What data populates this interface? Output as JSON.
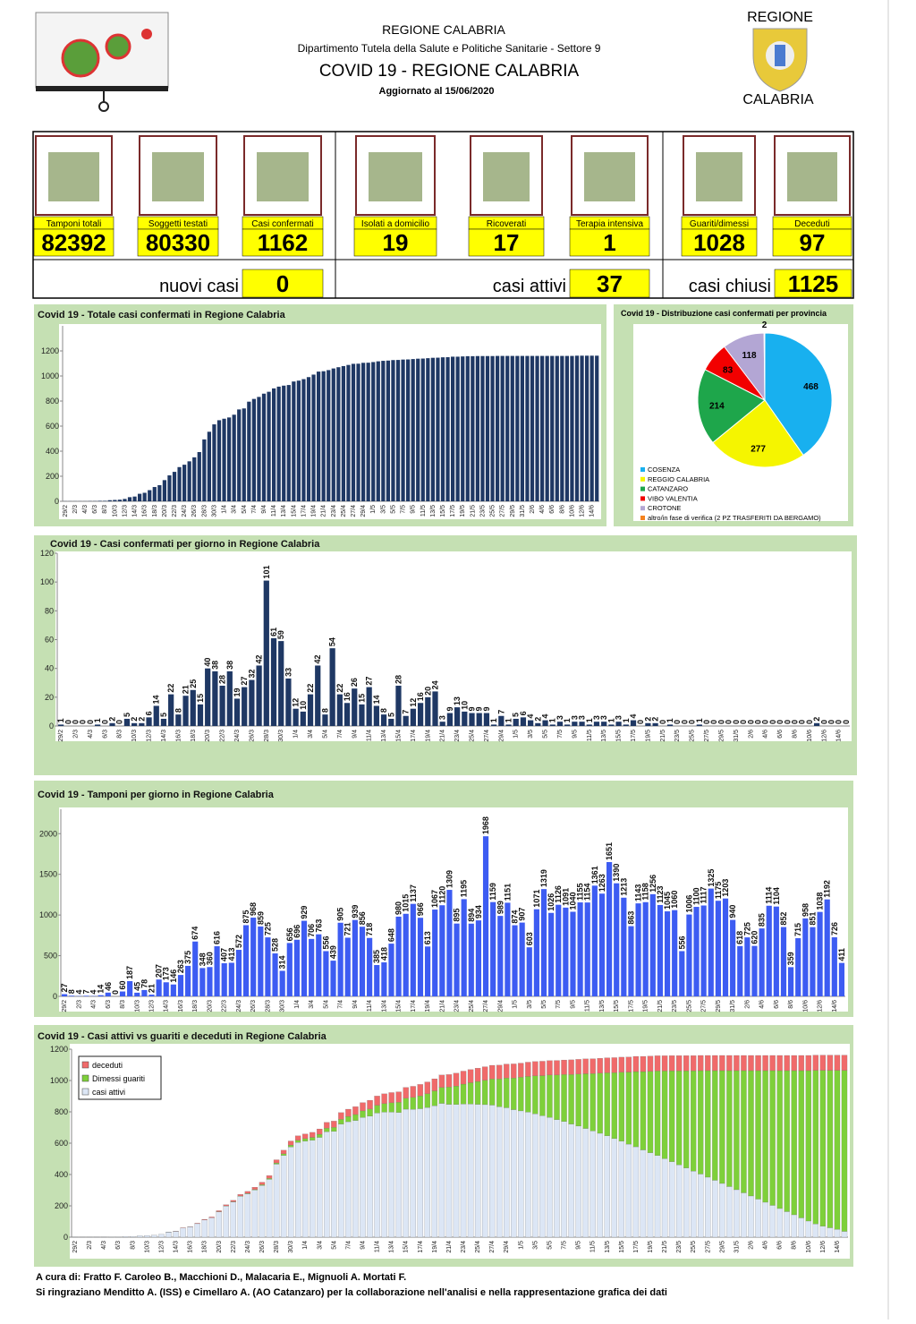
{
  "header": {
    "region": "REGIONE CALABRIA",
    "department": "Dipartimento Tutela della Salute e Politiche Sanitarie - Settore 9",
    "title": "COVID 19 - REGIONE CALABRIA",
    "updated": "Aggiornato al  15/06/2020"
  },
  "logo": {
    "top": "REGIONE",
    "bottom": "CALABRIA"
  },
  "cards": [
    {
      "label": "Tamponi totali",
      "value": 82392
    },
    {
      "label": "Soggetti testati",
      "value": 80330
    },
    {
      "label": "Casi confermati",
      "value": 1162
    },
    {
      "label": "Isolati a domicilio",
      "value": 19
    },
    {
      "label": "Ricoverati",
      "value": 17
    },
    {
      "label": "Terapia intensiva",
      "value": 1
    },
    {
      "label": "Guariti/dimessi",
      "value": 1028
    },
    {
      "label": "Deceduti",
      "value": 97
    }
  ],
  "summary": [
    {
      "label": "nuovi casi",
      "value": 0
    },
    {
      "label": "casi attivi",
      "value": 37
    },
    {
      "label": "casi chiusi",
      "value": 1125
    }
  ],
  "chart_data": [
    {
      "type": "bar",
      "title": "Covid 19 - Totale casi confermati in Regione Calabria",
      "color": "#1f3864",
      "ylim": [
        0,
        1400
      ],
      "yticks": [
        0,
        200,
        400,
        600,
        800,
        1000,
        1200
      ],
      "grid": false,
      "categories": [
        "29/2",
        null,
        "2/3",
        null,
        "4/3",
        null,
        "6/3",
        null,
        "8/3",
        null,
        "10/3",
        null,
        "12/3",
        null,
        "14/3",
        null,
        "16/3",
        null,
        "18/3",
        null,
        "20/3",
        null,
        "22/3",
        null,
        "24/3",
        null,
        "26/3",
        null,
        "28/3",
        null,
        "30/3",
        null,
        "1/4",
        null,
        "3/4",
        null,
        "5/4",
        null,
        "7/4",
        null,
        "9/4",
        null,
        "11/4",
        null,
        "13/4",
        null,
        "15/4",
        null,
        "17/4",
        null,
        "19/4",
        null,
        "21/4",
        null,
        "23/4",
        null,
        "25/4",
        null,
        "27/4",
        null,
        "29/4",
        null,
        "1/5",
        null,
        "3/5",
        null,
        "5/5",
        null,
        "7/5",
        null,
        "9/5",
        null,
        "11/5",
        null,
        "13/5",
        null,
        "15/5",
        null,
        "17/5",
        null,
        "19/5",
        null,
        "21/5",
        null,
        "23/5",
        null,
        "25/5",
        null,
        "27/5",
        null,
        "29/5",
        null,
        "31/5",
        null,
        "2/6",
        null,
        "4/6",
        null,
        "6/6",
        null,
        "8/6",
        null,
        "10/6",
        null,
        "12/6",
        null,
        "14/6",
        null
      ],
      "values": [
        1,
        1,
        1,
        1,
        1,
        2,
        2,
        4,
        4,
        9,
        11,
        13,
        19,
        33,
        38,
        60,
        68,
        89,
        114,
        129,
        169,
        207,
        235,
        273,
        292,
        319,
        351,
        393,
        494,
        555,
        614,
        647,
        659,
        669,
        691,
        733,
        741,
        795,
        817,
        833,
        859,
        874,
        901,
        915,
        923,
        928,
        956,
        963,
        975,
        991,
        1011,
        1035,
        1038,
        1047,
        1060,
        1070,
        1079,
        1088,
        1097,
        1098,
        1105,
        1106,
        1111,
        1117,
        1121,
        1123,
        1127,
        1128,
        1131,
        1132,
        1135,
        1138,
        1139,
        1142,
        1145,
        1146,
        1149,
        1150,
        1154,
        1154,
        1156,
        1158,
        1158,
        1159,
        1159,
        1159,
        1159,
        1160,
        1160,
        1160,
        1160,
        1160,
        1160,
        1160,
        1160,
        1160,
        1160,
        1160,
        1160,
        1160,
        1160,
        1160,
        1160,
        1162,
        1162,
        1162,
        1162,
        1162
      ]
    },
    {
      "type": "bar",
      "title": "Covid 19 - Casi confermati per giorno in Regione Calabria",
      "color": "#1f3864",
      "ylim": [
        0,
        120
      ],
      "yticks": [
        0,
        20,
        40,
        60,
        80,
        100,
        120
      ],
      "grid": false,
      "data_labels": true,
      "categories": [
        "29/2",
        null,
        "2/3",
        null,
        "4/3",
        null,
        "6/3",
        null,
        "8/3",
        null,
        "10/3",
        null,
        "12/3",
        null,
        "14/3",
        null,
        "16/3",
        null,
        "18/3",
        null,
        "20/3",
        null,
        "22/3",
        null,
        "24/3",
        null,
        "26/3",
        null,
        "28/3",
        null,
        "30/3",
        null,
        "1/4",
        null,
        "3/4",
        null,
        "5/4",
        null,
        "7/4",
        null,
        "9/4",
        null,
        "11/4",
        null,
        "13/4",
        null,
        "15/4",
        null,
        "17/4",
        null,
        "19/4",
        null,
        "21/4",
        null,
        "23/4",
        null,
        "25/4",
        null,
        "27/4",
        null,
        "29/4",
        null,
        "1/5",
        null,
        "3/5",
        null,
        "5/5",
        null,
        "7/5",
        null,
        "9/5",
        null,
        "11/5",
        null,
        "13/5",
        null,
        "15/5",
        null,
        "17/5",
        null,
        "19/5",
        null,
        "21/5",
        null,
        "23/5",
        null,
        "25/5",
        null,
        "27/5",
        null,
        "29/5",
        null,
        "31/5",
        null,
        "2/6",
        null,
        "4/6",
        null,
        "6/6",
        null,
        "8/6",
        null,
        "10/6",
        null,
        "12/6",
        null,
        "14/6",
        null
      ],
      "values": [
        1,
        0,
        0,
        0,
        0,
        1,
        0,
        2,
        0,
        5,
        2,
        2,
        6,
        14,
        5,
        22,
        8,
        21,
        25,
        15,
        40,
        38,
        28,
        38,
        19,
        27,
        32,
        42,
        101,
        61,
        59,
        33,
        12,
        10,
        22,
        42,
        8,
        54,
        22,
        16,
        26,
        15,
        27,
        14,
        8,
        5,
        28,
        7,
        12,
        16,
        20,
        24,
        3,
        9,
        13,
        10,
        9,
        9,
        9,
        1,
        7,
        1,
        5,
        6,
        4,
        2,
        4,
        1,
        3,
        1,
        3,
        3,
        1,
        3,
        3,
        1,
        3,
        1,
        4,
        0,
        2,
        2,
        0,
        1,
        0,
        0,
        0,
        1,
        0,
        0,
        0,
        0,
        0,
        0,
        0,
        0,
        0,
        0,
        0,
        0,
        0,
        0,
        0,
        2,
        0,
        0,
        0,
        0
      ]
    },
    {
      "type": "bar",
      "title": "Covid 19 - Tamponi per giorno in Regione Calabria",
      "color": "#3d5cf2",
      "ylim": [
        0,
        2300
      ],
      "yticks": [
        0,
        500,
        1000,
        1500,
        2000
      ],
      "grid": false,
      "data_labels": true,
      "categories": [
        "29/2",
        null,
        "2/3",
        null,
        "4/3",
        null,
        "6/3",
        null,
        "8/3",
        null,
        "10/3",
        null,
        "12/3",
        null,
        "14/3",
        null,
        "16/3",
        null,
        "18/3",
        null,
        "20/3",
        null,
        "22/3",
        null,
        "24/3",
        null,
        "26/3",
        null,
        "28/3",
        null,
        "30/3",
        null,
        "1/4",
        null,
        "3/4",
        null,
        "5/4",
        null,
        "7/4",
        null,
        "9/4",
        null,
        "11/4",
        null,
        "13/4",
        null,
        "15/4",
        null,
        "17/4",
        null,
        "19/4",
        null,
        "21/4",
        null,
        "23/4",
        null,
        "25/4",
        null,
        "27/4",
        null,
        "29/4",
        null,
        "1/5",
        null,
        "3/5",
        null,
        "5/5",
        null,
        "7/5",
        null,
        "9/5",
        null,
        "11/5",
        null,
        "13/5",
        null,
        "15/5",
        null,
        "17/5",
        null,
        "19/5",
        null,
        "21/5",
        null,
        "23/5",
        null,
        "25/5",
        null,
        "27/5",
        null,
        "29/5",
        null,
        "31/5",
        null,
        "2/6",
        null,
        "4/6",
        null,
        "6/6",
        null,
        "8/6",
        null,
        "10/6",
        null,
        "12/6",
        null,
        "14/6",
        null
      ],
      "values": [
        27,
        8,
        4,
        7,
        4,
        14,
        46,
        0,
        60,
        187,
        45,
        78,
        21,
        207,
        173,
        146,
        263,
        375,
        674,
        348,
        360,
        616,
        407,
        413,
        572,
        875,
        968,
        859,
        725,
        528,
        314,
        656,
        696,
        929,
        706,
        763,
        556,
        439,
        905,
        721,
        939,
        856,
        718,
        385,
        418,
        648,
        980,
        1015,
        1137,
        966,
        613,
        1067,
        1120,
        1309,
        895,
        1195,
        894,
        934,
        1968,
        1159,
        989,
        1151,
        874,
        907,
        603,
        1071,
        1319,
        1026,
        1126,
        1091,
        1040,
        1155,
        1154,
        1361,
        1263,
        1651,
        1390,
        1213,
        863,
        1143,
        1158,
        1256,
        1123,
        1045,
        1060,
        556,
        1006,
        1100,
        1117,
        1325,
        1175,
        1203,
        940,
        618,
        725,
        620,
        835,
        1114,
        1104,
        852,
        359,
        715,
        958,
        851,
        1038,
        1192,
        726,
        411
      ]
    },
    {
      "type": "stacked-bar",
      "title": "Covid 19 - Casi attivi vs guariti e deceduti in Regione Calabria",
      "ylim": [
        0,
        1200
      ],
      "yticks": [
        0,
        200,
        400,
        600,
        800,
        1000,
        1200
      ],
      "grid": false,
      "categories": [
        "29/2",
        null,
        "2/3",
        null,
        "4/3",
        null,
        "6/3",
        null,
        "8/3",
        null,
        "10/3",
        null,
        "12/3",
        null,
        "14/3",
        null,
        "16/3",
        null,
        "18/3",
        null,
        "20/3",
        null,
        "22/3",
        null,
        "24/3",
        null,
        "26/3",
        null,
        "28/3",
        null,
        "30/3",
        null,
        "1/4",
        null,
        "3/4",
        null,
        "5/4",
        null,
        "7/4",
        null,
        "9/4",
        null,
        "11/4",
        null,
        "13/4",
        null,
        "15/4",
        null,
        "17/4",
        null,
        "19/4",
        null,
        "21/4",
        null,
        "23/4",
        null,
        "25/4",
        null,
        "27/4",
        null,
        "29/4",
        null,
        "1/5",
        null,
        "3/5",
        null,
        "5/5",
        null,
        "7/5",
        null,
        "9/5",
        null,
        "11/5",
        null,
        "13/5",
        null,
        "15/5",
        null,
        "17/5",
        null,
        "19/5",
        null,
        "21/5",
        null,
        "23/5",
        null,
        "25/5",
        null,
        "27/5",
        null,
        "29/5",
        null,
        "31/5",
        null,
        "2/6",
        null,
        "4/6",
        null,
        "6/6",
        null,
        "8/6",
        null,
        "10/6",
        null,
        "12/6",
        null,
        "14/6",
        null
      ],
      "series": [
        {
          "name": "casi attivi",
          "color": "#dce6f5",
          "values": [
            1,
            1,
            1,
            1,
            1,
            2,
            2,
            4,
            4,
            9,
            11,
            13,
            19,
            32,
            37,
            58,
            66,
            86,
            110,
            124,
            162,
            199,
            225,
            261,
            277,
            301,
            330,
            369,
            466,
            522,
            576,
            605,
            613,
            619,
            637,
            673,
            675,
            722,
            737,
            745,
            764,
            772,
            792,
            798,
            798,
            796,
            817,
            816,
            820,
            828,
            839,
            854,
            848,
            847,
            850,
            850,
            848,
            846,
            843,
            832,
            826,
            814,
            806,
            798,
            788,
            775,
            765,
            750,
            738,
            722,
            709,
            694,
            678,
            663,
            647,
            629,
            613,
            594,
            577,
            557,
            539,
            521,
            501,
            482,
            462,
            442,
            422,
            403,
            383,
            363,
            343,
            323,
            303,
            283,
            263,
            243,
            223,
            203,
            183,
            163,
            143,
            123,
            103,
            85,
            70,
            60,
            50,
            37
          ]
        },
        {
          "name": "Dimessi guariti",
          "color": "#7ed03a",
          "values": [
            0,
            0,
            0,
            0,
            0,
            0,
            0,
            0,
            0,
            0,
            0,
            0,
            0,
            0,
            0,
            0,
            0,
            0,
            0,
            0,
            1,
            1,
            2,
            2,
            3,
            4,
            5,
            6,
            8,
            10,
            12,
            14,
            16,
            18,
            20,
            23,
            26,
            30,
            34,
            38,
            42,
            46,
            50,
            55,
            60,
            65,
            70,
            76,
            82,
            88,
            95,
            102,
            110,
            118,
            127,
            136,
            146,
            156,
            167,
            178,
            190,
            202,
            215,
            228,
            242,
            256,
            270,
            285,
            300,
            316,
            332,
            349,
            366,
            384,
            402,
            421,
            440,
            460,
            480,
            500,
            520,
            540,
            560,
            580,
            600,
            620,
            640,
            660,
            680,
            700,
            720,
            740,
            760,
            780,
            800,
            820,
            840,
            860,
            880,
            900,
            920,
            940,
            960,
            980,
            995,
            1005,
            1015,
            1028
          ]
        },
        {
          "name": "deceduti",
          "color": "#f06a6a",
          "values": [
            0,
            0,
            0,
            0,
            0,
            0,
            0,
            0,
            0,
            0,
            0,
            0,
            0,
            1,
            1,
            2,
            2,
            3,
            4,
            5,
            6,
            7,
            8,
            10,
            12,
            14,
            16,
            18,
            20,
            23,
            26,
            28,
            30,
            32,
            34,
            37,
            40,
            43,
            46,
            50,
            53,
            56,
            59,
            62,
            65,
            67,
            69,
            71,
            73,
            75,
            77,
            79,
            80,
            82,
            83,
            84,
            85,
            86,
            87,
            88,
            89,
            90,
            90,
            91,
            91,
            92,
            92,
            93,
            93,
            94,
            94,
            95,
            95,
            95,
            96,
            96,
            96,
            96,
            97,
            97,
            97,
            97,
            97,
            97,
            97,
            97,
            97,
            97,
            97,
            97,
            97,
            97,
            97,
            97,
            97,
            97,
            97,
            97,
            97,
            97,
            97,
            97,
            97,
            97,
            97,
            97,
            97,
            97
          ]
        }
      ]
    },
    {
      "type": "pie",
      "title": "Covid 19 - Distribuzione casi confermati per provincia",
      "categories": [
        "COSENZA",
        "REGGIO CALABRIA",
        "CATANZARO",
        "VIBO VALENTIA",
        "CROTONE",
        "altro/in fase di verifica (2 PZ TRASFERITI DA BERGAMO)"
      ],
      "values": [
        468,
        277,
        214,
        83,
        118,
        2
      ],
      "colors": [
        "#18b0ef",
        "#f5f500",
        "#1ea64b",
        "#f20000",
        "#b3a6d4",
        "#f5821f"
      ]
    }
  ],
  "footer": [
    "A cura di: Fratto F. Caroleo B., Macchioni D., Malacaria E., Mignuoli A. Mortati F.",
    "Si ringraziano Menditto A. (ISS) e Cimellaro A. (AO Catanzaro) per la collaborazione nell'analisi e nella rappresentazione grafica dei dati"
  ]
}
